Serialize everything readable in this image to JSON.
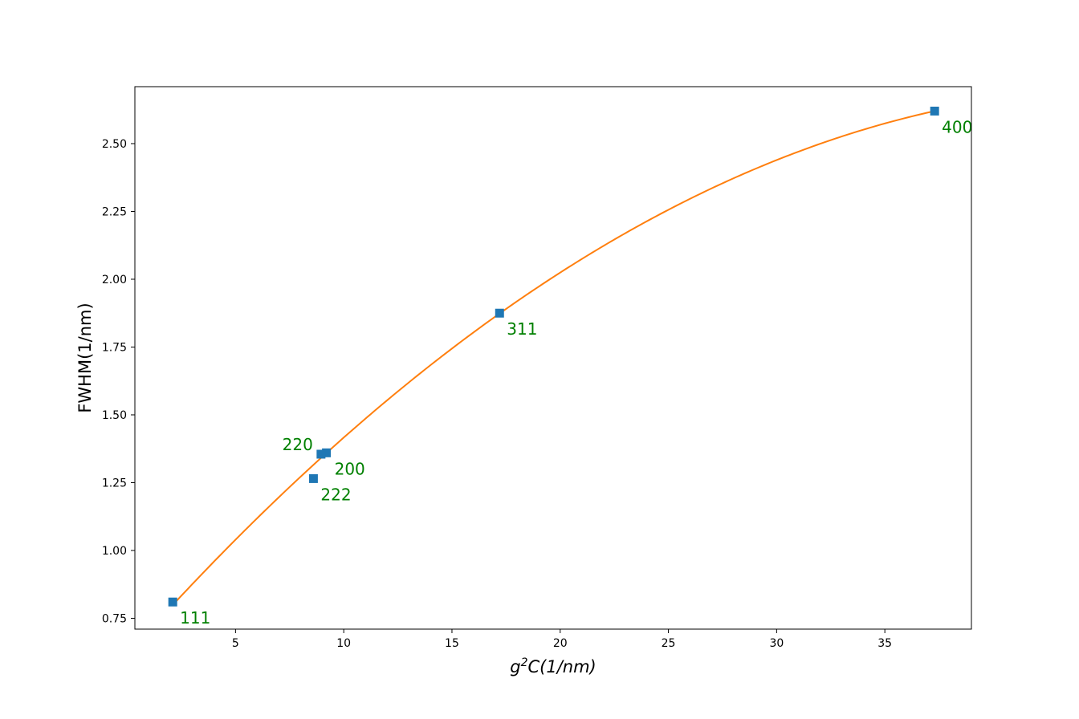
{
  "chart_data": {
    "type": "scatter",
    "title": "",
    "xlabel": {
      "base": "g",
      "sup": "2",
      "rest": "C(1/nm)"
    },
    "ylabel": "FWHM(1/nm)",
    "xlim": [
      0.35,
      39.0
    ],
    "ylim": [
      0.71,
      2.71
    ],
    "xticks": [
      5,
      10,
      15,
      20,
      25,
      30,
      35
    ],
    "yticks": [
      0.75,
      1.0,
      1.25,
      1.5,
      1.75,
      2.0,
      2.25,
      2.5
    ],
    "ytick_format": "0.00",
    "grid": false,
    "legend": "none",
    "colors": {
      "points": "#1f77b4",
      "fit": "#ff7f0e",
      "labels": "#008000",
      "axes": "#000000"
    },
    "points": [
      {
        "label": "111",
        "x": 2.1,
        "y": 0.81
      },
      {
        "label": "200",
        "x": 9.2,
        "y": 1.36
      },
      {
        "label": "220",
        "x": 8.95,
        "y": 1.355
      },
      {
        "label": "311",
        "x": 17.2,
        "y": 1.875
      },
      {
        "label": "222",
        "x": 8.6,
        "y": 1.265
      },
      {
        "label": "400",
        "x": 37.3,
        "y": 2.62
      }
    ],
    "fit": {
      "type": "quadratic",
      "x_range": [
        2.1,
        37.3
      ],
      "x": [
        2.1,
        9.1,
        17.2,
        37.3
      ],
      "y": [
        0.8,
        1.35,
        1.875,
        2.62
      ]
    }
  }
}
